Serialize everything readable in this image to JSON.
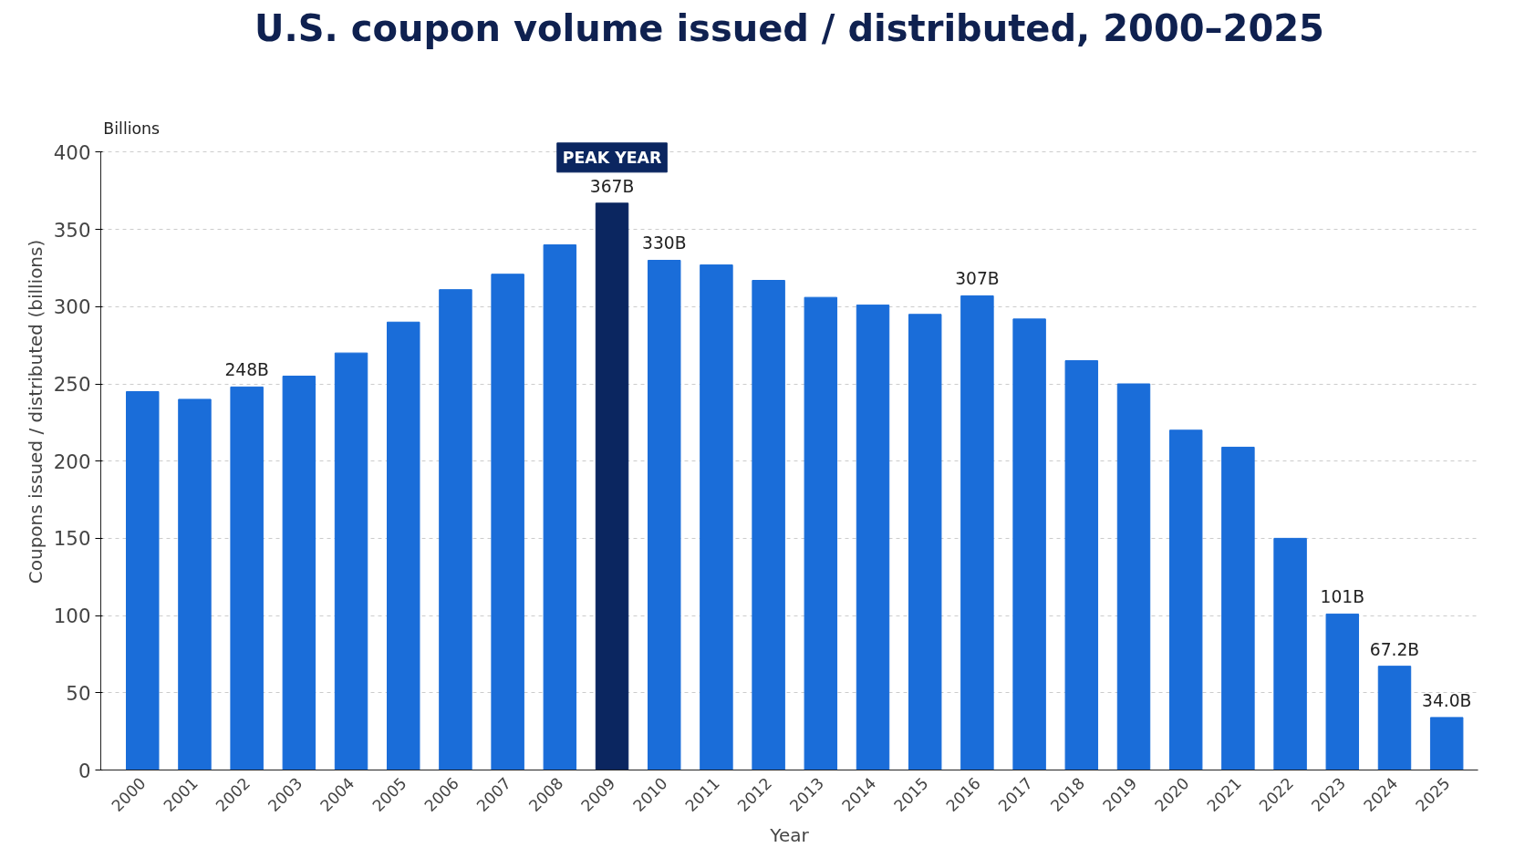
{
  "chart_data": {
    "type": "bar",
    "title": "U.S. coupon volume issued / distributed, 2000–2025",
    "xlabel": "Year",
    "ylabel": "Coupons issued / distributed (billions)",
    "categories": [
      "2000",
      "2001",
      "2002",
      "2003",
      "2004",
      "2005",
      "2006",
      "2007",
      "2008",
      "2009",
      "2010",
      "2011",
      "2012",
      "2013",
      "2014",
      "2015",
      "2016",
      "2017",
      "2018",
      "2019",
      "2020",
      "2021",
      "2022",
      "2023",
      "2024",
      "2025"
    ],
    "values": [
      245,
      240,
      248,
      255,
      270,
      290,
      311,
      321,
      340,
      367,
      330,
      327,
      317,
      306,
      301,
      295,
      307,
      292,
      265,
      250,
      220,
      209,
      150,
      101,
      67.2,
      34.0
    ],
    "value_labels": [
      null,
      null,
      "248B",
      null,
      null,
      null,
      null,
      null,
      null,
      "367B",
      "330B",
      null,
      null,
      null,
      null,
      null,
      "307B",
      null,
      null,
      null,
      null,
      null,
      null,
      "101B",
      "67.2B",
      "34.0B"
    ],
    "colors": [
      "#1a6dd9",
      "#1a6dd9",
      "#1a6dd9",
      "#1a6dd9",
      "#1a6dd9",
      "#1a6dd9",
      "#1a6dd9",
      "#1a6dd9",
      "#1a6dd9",
      "#0b2660",
      "#1a6dd9",
      "#1a6dd9",
      "#1a6dd9",
      "#1a6dd9",
      "#1a6dd9",
      "#1a6dd9",
      "#1a6dd9",
      "#1a6dd9",
      "#1a6dd9",
      "#1a6dd9",
      "#1a6dd9",
      "#1a6dd9",
      "#1a6dd9",
      "#1a6dd9",
      "#1a6dd9",
      "#1a6dd9"
    ],
    "ylim": [
      0,
      400
    ],
    "yticks": [
      0,
      50,
      100,
      150,
      200,
      250,
      300,
      350,
      400
    ],
    "grid": "y",
    "annotations": [
      "Billions",
      {
        "text": "PEAK YEAR",
        "x": "2009",
        "y": 367
      }
    ]
  }
}
